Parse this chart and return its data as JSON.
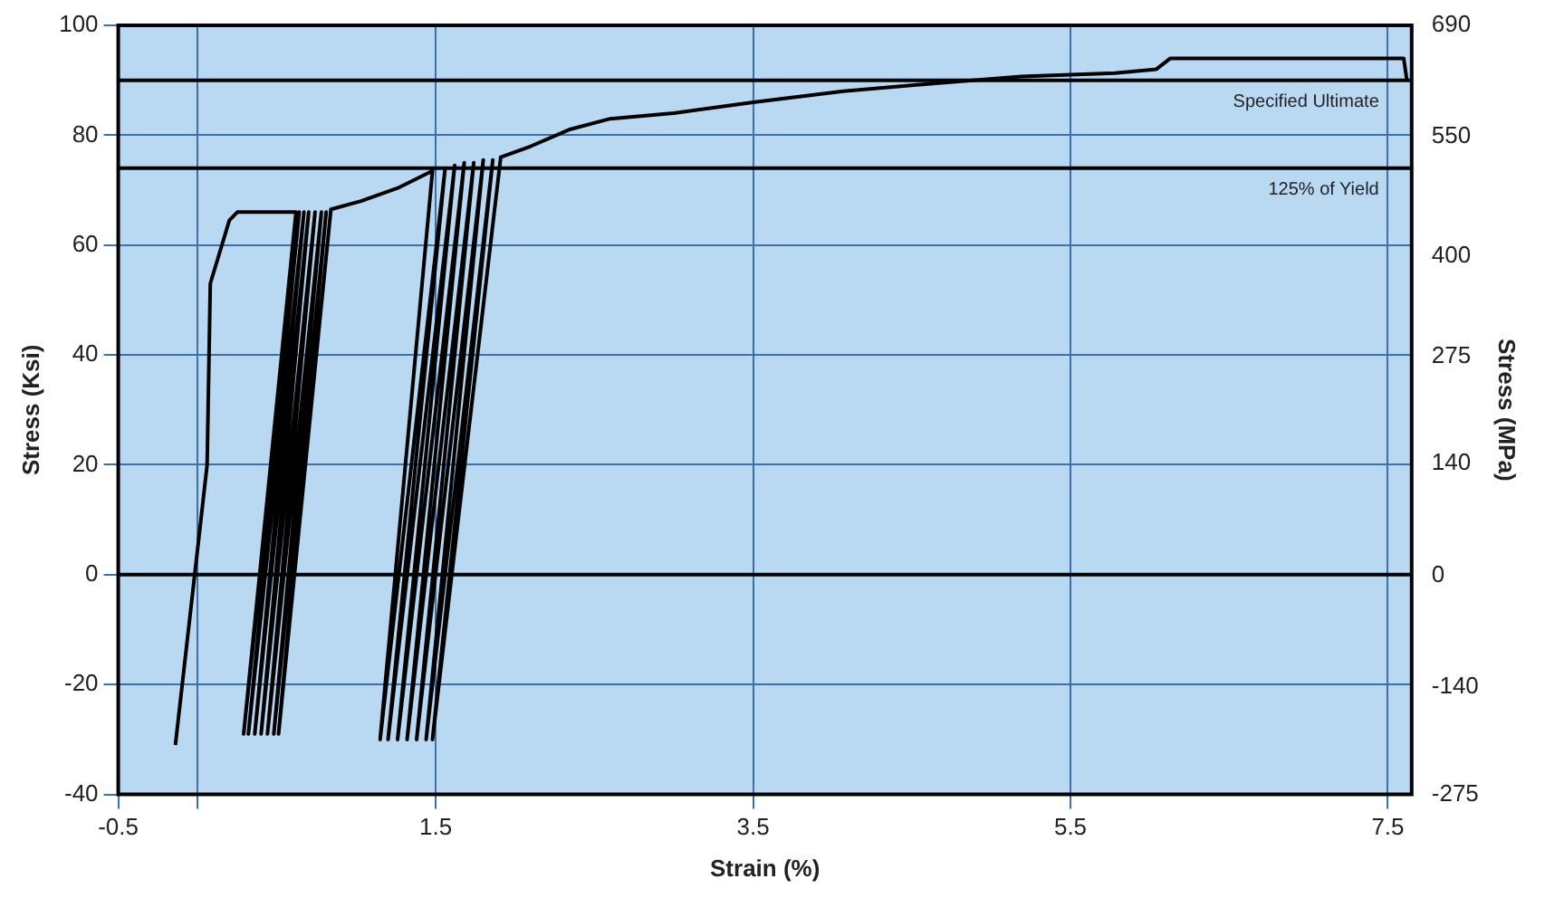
{
  "chart_data": {
    "type": "line",
    "xlabel": "Strain (%)",
    "ylabel": "Stress (Ksi)",
    "y2label": "Stress (MPa)",
    "xlim": [
      -0.5,
      7.65
    ],
    "xticks": [
      -0.5,
      {
        "value": 0,
        "label": null
      },
      1.5,
      3.5,
      5.5,
      7.5
    ],
    "ylim": [
      -40,
      100
    ],
    "yticks": [
      -40,
      -20,
      0,
      20,
      40,
      60,
      80,
      100
    ],
    "y2lim": [
      -275,
      690
    ],
    "y2ticks": [
      -275,
      -140,
      0,
      140,
      275,
      400,
      550,
      690
    ],
    "grid": true,
    "legend": false,
    "marker": "none",
    "line_style": "solid",
    "ref_lines": [
      {
        "axis": "y",
        "value": 90,
        "label": "Specified Ultimate",
        "color": "#000000"
      },
      {
        "axis": "y",
        "value": 74,
        "label": "125% of Yield",
        "color": "#000000"
      },
      {
        "axis": "y",
        "value": 0,
        "label": null,
        "color": "#000000"
      }
    ],
    "series": [
      {
        "color": "#000000",
        "x": [
          -0.14,
          0.06,
          0.08,
          0.2,
          0.25,
          0.62,
          0.29,
          0.64,
          0.32,
          0.67,
          0.36,
          0.7,
          0.4,
          0.74,
          0.44,
          0.78,
          0.48,
          0.81,
          0.51,
          0.84,
          1.03,
          1.27,
          1.48,
          1.15,
          1.56,
          1.2,
          1.62,
          1.26,
          1.68,
          1.32,
          1.74,
          1.38,
          1.8,
          1.44,
          1.86,
          1.48,
          1.91,
          2.1,
          2.34,
          2.6,
          3.0,
          3.5,
          4.07,
          4.67,
          5.19,
          5.78,
          6.04,
          6.13,
          7.6,
          7.62
        ],
        "values": [
          -31,
          20,
          53,
          64.5,
          66,
          66,
          -29,
          66,
          -29,
          66,
          -29,
          66,
          -29,
          66,
          -29,
          66,
          -29,
          66,
          -29,
          66.5,
          68,
          70.5,
          73.5,
          -30,
          74,
          -30,
          74.5,
          -30,
          75,
          -30,
          75,
          -30,
          75.5,
          -30,
          75.5,
          -30,
          76,
          78,
          81,
          83,
          84,
          86,
          88,
          89.5,
          90.7,
          91.3,
          92,
          94,
          94,
          90
        ]
      }
    ]
  }
}
